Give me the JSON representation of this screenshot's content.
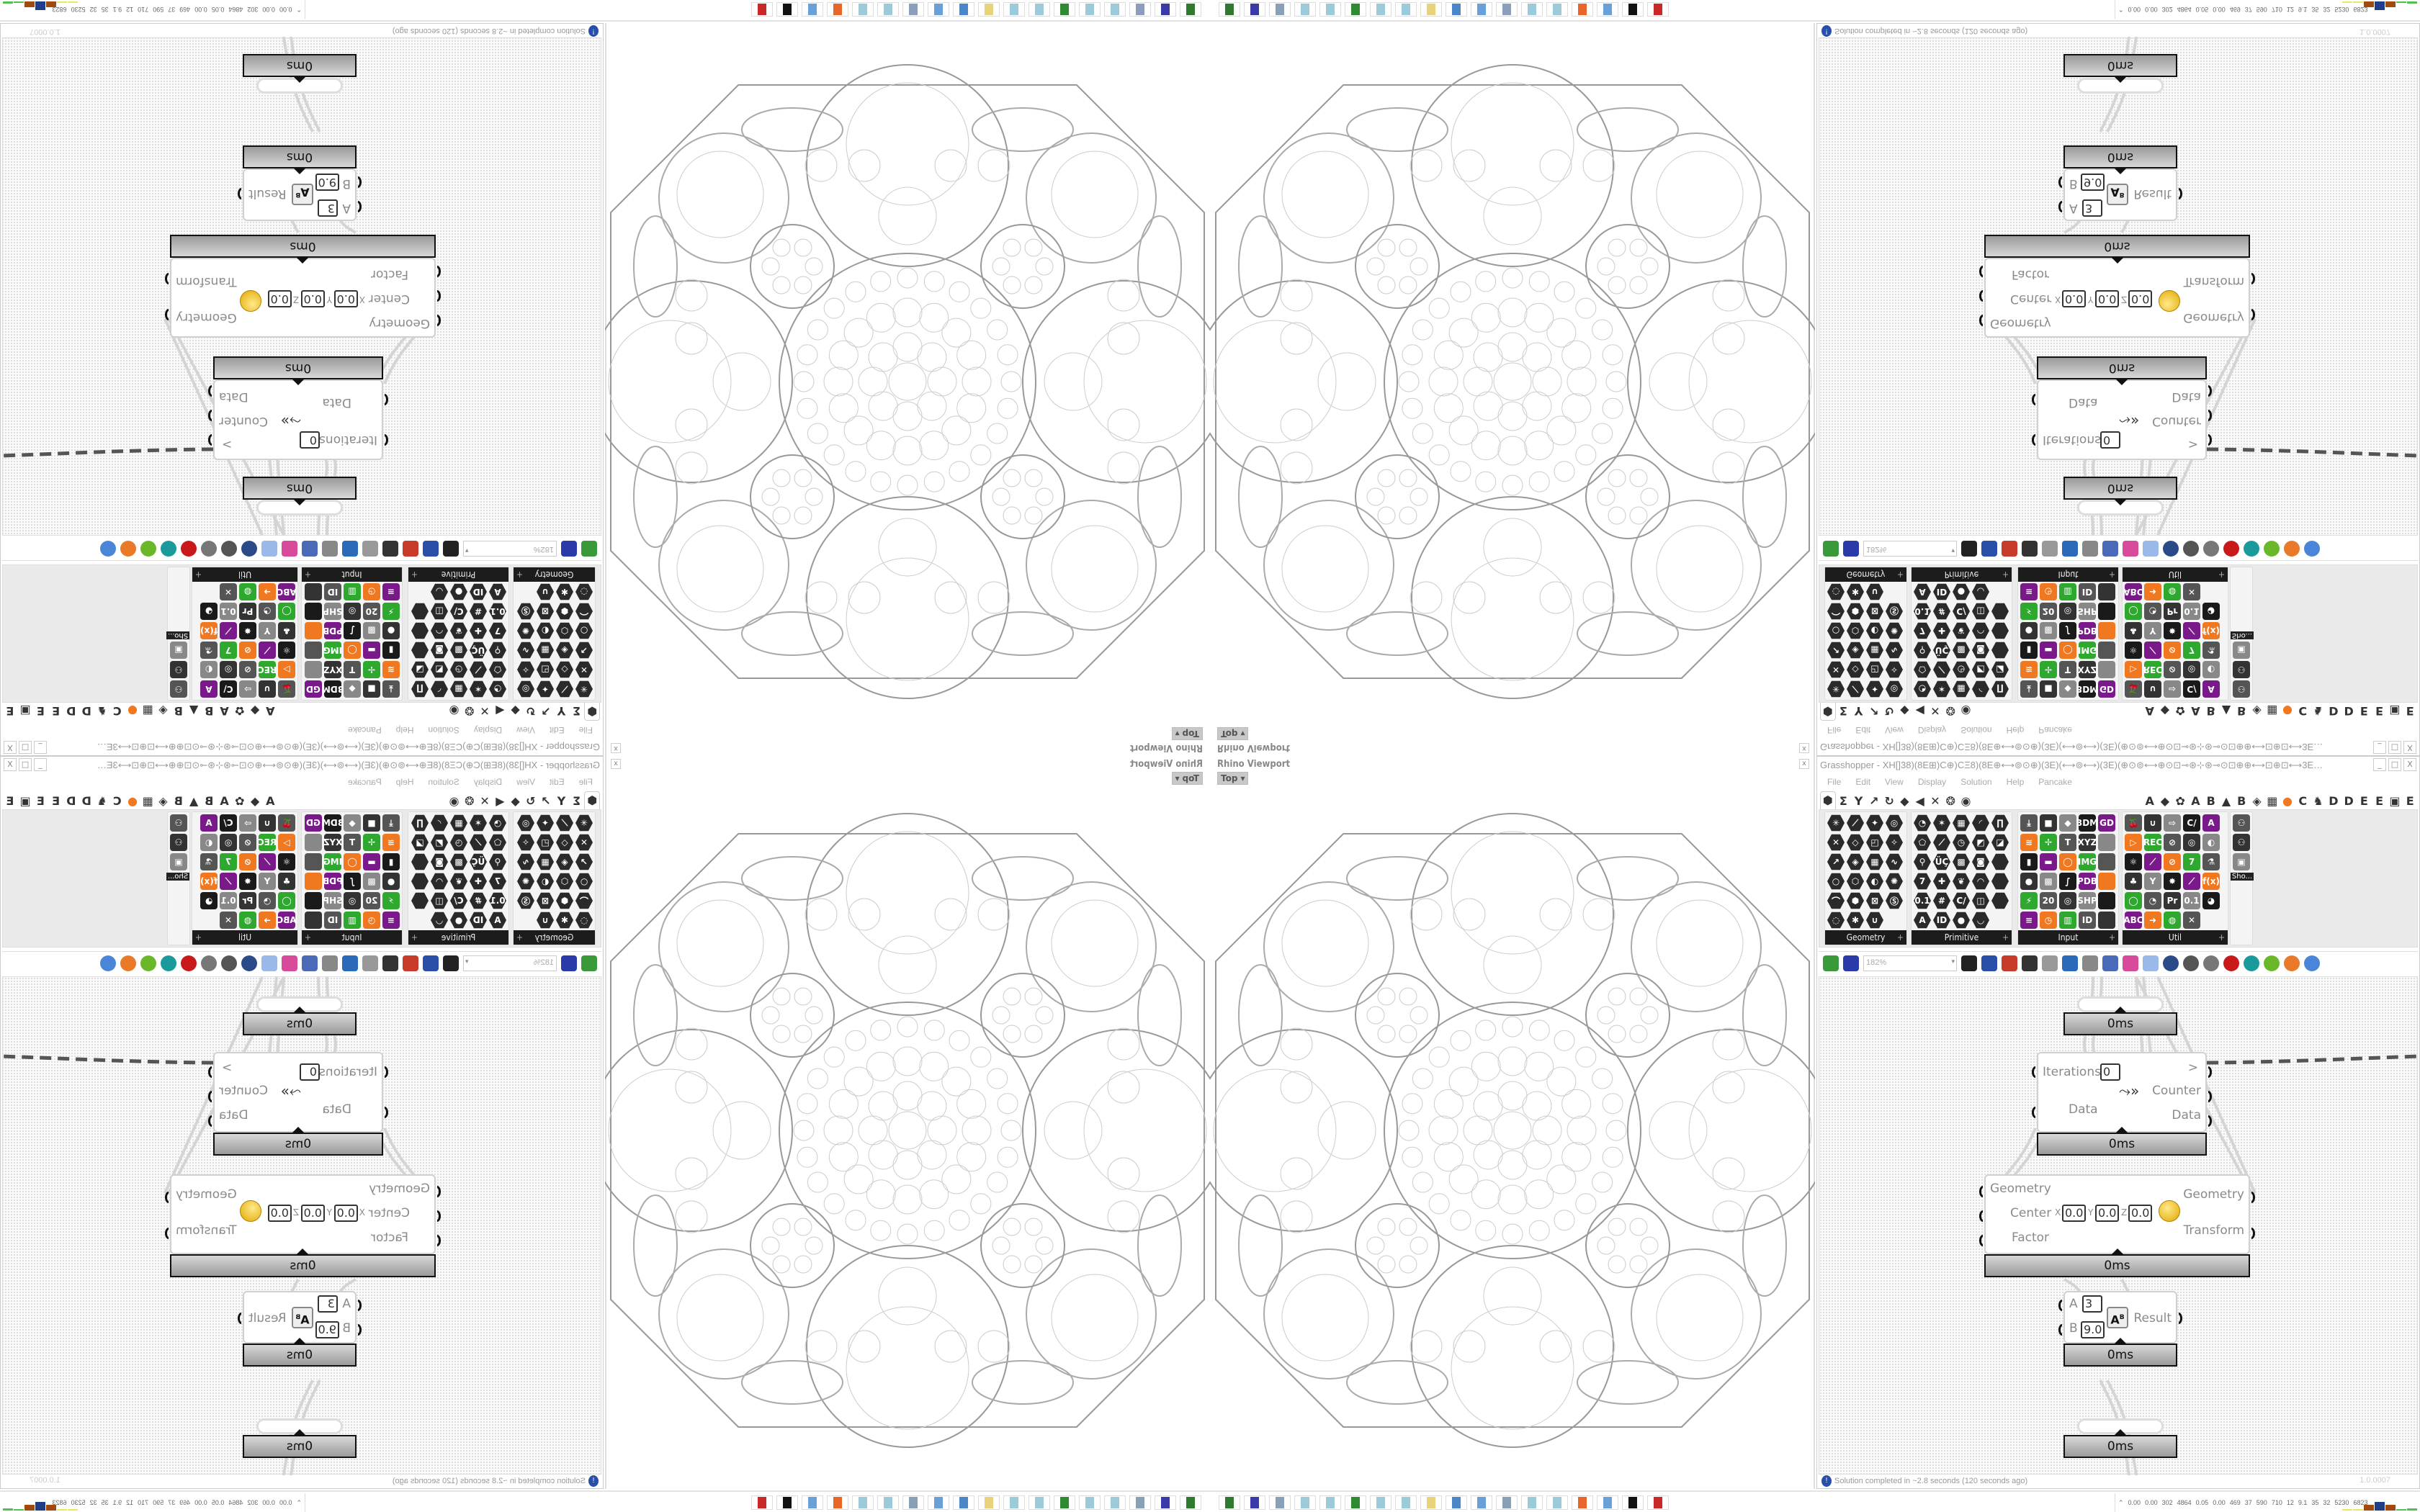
{
  "viewport": {
    "title": "Rhino Viewport",
    "view_button": "Top",
    "close_label": "x"
  },
  "grasshopper": {
    "title": "Grasshopper - XH[]38)(8E⊞)C⊕)CΞ8)(8E⊕⟷⊚⊙⊕)(3E)(⟷⊚⟷)(3E)(⊕⊙⊚⟷⊕⊙⊡⊸⊛⊹⊛⊸⊙⊡⊕⊕⟷⊡⊕⊡⟷3E][3E⟷⊡⊕⊡⟷⊕⊙⊡⊸⊛⊹⊛⊸⊙⊡⊕⊕⟷⊚⊙⊕)(3E)(⟷⊙...",
    "window_buttons": [
      "_",
      "□",
      "X"
    ],
    "menu": [
      "File",
      "Edit",
      "View",
      "Display",
      "Solution",
      "Help",
      "Pancake"
    ],
    "tabs": [
      "⬢",
      "Σ",
      "Y",
      "↗",
      "↻",
      "◆",
      "◀",
      "✕",
      "❂",
      "◉",
      "",
      "",
      "",
      "",
      "",
      "",
      "",
      "",
      "",
      "",
      "",
      "A",
      "◆",
      "✿",
      "A",
      "B",
      "▲",
      "B",
      "◈",
      "▦",
      "●",
      "C",
      "♞",
      "D",
      "D",
      "E",
      "E",
      "▣",
      "E"
    ],
    "palette": [
      {
        "label": "Geometry",
        "cols": 4,
        "icons": [
          "✳",
          "⟋",
          "✦",
          "◎",
          "✕",
          "◇",
          "◰",
          "✧",
          "↗",
          "◈",
          "▦",
          "∿",
          "○",
          "⬡",
          "◐",
          "✺",
          "⌒",
          "⬢",
          "⊠",
          "Ⓢ",
          "◌",
          "✱",
          "∪"
        ]
      },
      {
        "label": "Primitive",
        "cols": 5,
        "icons": [
          "◔",
          "✶",
          "▦",
          "◜",
          "∏",
          "⬠",
          "⟋",
          "◷",
          "◩",
          "◪",
          "⚲",
          "ÜÇ",
          "▩",
          "◙",
          "",
          "7",
          "✚",
          "❦",
          "◠",
          "",
          "0.1",
          "#",
          "C/",
          "◫",
          "",
          "A",
          "ID",
          "●",
          "◡"
        ]
      },
      {
        "label": "Input",
        "cols": 5,
        "icons": [
          "⤓",
          "■",
          "◆",
          "3DM",
          "GD",
          "≋",
          "✢",
          "T",
          "XYZ",
          "",
          "▮",
          "▬",
          "◯",
          "IMG",
          "",
          "●",
          "▩",
          "∫",
          "PDB",
          "",
          "⚡",
          "20",
          "◎",
          "SHP",
          "",
          "≡",
          "◷",
          "▥",
          "ID",
          ""
        ]
      },
      {
        "label": "Util",
        "cols": 5,
        "icons": [
          "🍒",
          "∪",
          "⇨",
          "C/",
          "A",
          "▷",
          "REC",
          "⊘",
          "◎",
          "◐",
          "⚛",
          "⟋",
          "⊘",
          "7",
          "⚗",
          "♣",
          "Y",
          "✸",
          "⟋",
          "f(x)",
          "◯",
          "◔",
          "Pr",
          "0.1",
          "◕",
          "ABC",
          "➜",
          "◍",
          "✕"
        ]
      },
      {
        "label": "Sho...",
        "cols": 1,
        "icons": [
          "⚇",
          "⚇",
          "▣"
        ]
      }
    ],
    "icon_colors": {
      "hex": "#2a2a2a",
      "input": "#555555",
      "util": "#444444",
      "accent_orange": "#f07820",
      "accent_purple": "#7a1a8a",
      "accent_green": "#2ea82e"
    },
    "toolbar": {
      "zoom": "182%",
      "icons": [
        "new-file-icon",
        "save-icon",
        "zoom-field",
        "zoom-extents-icon",
        "preview-eye-icon",
        "sketch-icon",
        "bake-icon",
        "at-icon",
        "gha-icon",
        "image-icon",
        "search-icon",
        "package-icon",
        "bulb-icon",
        "wires-icon",
        "preview-shaded-icon",
        "preview-wire-icon",
        "preview-red-icon",
        "teal-icon",
        "green-icon",
        "orange-icon",
        "sphere-icon"
      ]
    },
    "nodes": {
      "top_time": "0ms",
      "counter": {
        "iterations_label": "Iterations",
        "iterations_value": "0",
        "reset_output": ">",
        "counter_label": "Counter",
        "data_in": "Data",
        "data_out": "Data",
        "time": "0ms"
      },
      "scale": {
        "geometry_in": "Geometry",
        "center_label": "Center",
        "x_label": "X",
        "x_value": "0.0",
        "y_label": "Y",
        "y_value": "0.0",
        "z_label": "Z",
        "z_value": "0.0",
        "factor_label": "Factor",
        "geometry_out": "Geometry",
        "transform_out": "Transform",
        "time": "0ms"
      },
      "power": {
        "a_label": "A",
        "a_value": "3",
        "b_label": "B",
        "b_value": "9.0",
        "result_label": "Result",
        "time": "0ms"
      },
      "bottom_time": "0ms"
    },
    "status": {
      "message": "Solution completed in ~2.8 seconds (120 seconds ago)",
      "version": "1.0.0007"
    }
  },
  "taskbar": {
    "icons": [
      {
        "name": "app-green-icon",
        "color": "#2f7a2f"
      },
      {
        "name": "floppy-64-icon",
        "color": "#3a3aa8"
      },
      {
        "name": "script-icon",
        "color": "#8aa0b8"
      },
      {
        "name": "notepad-icon",
        "color": "#9ccad8"
      },
      {
        "name": "notepad-icon",
        "color": "#9ccad8"
      },
      {
        "name": "monitor-icon",
        "color": "#2e8a2e"
      },
      {
        "name": "notepad-icon",
        "color": "#9ccad8"
      },
      {
        "name": "notepad-icon",
        "color": "#9ccad8"
      },
      {
        "name": "folder-icon",
        "color": "#e8d27a"
      },
      {
        "name": "settings-icon",
        "color": "#4a86c8"
      },
      {
        "name": "calculator-icon",
        "color": "#6aa0d8"
      },
      {
        "name": "script-icon",
        "color": "#8aa0b8"
      },
      {
        "name": "notepad-icon",
        "color": "#9ccad8"
      },
      {
        "name": "notepad-icon",
        "color": "#9ccad8"
      },
      {
        "name": "firefox-icon",
        "color": "#e8662a"
      },
      {
        "name": "calculator-icon",
        "color": "#6aa0d8"
      },
      {
        "name": "inkscape-icon",
        "color": "#111111"
      },
      {
        "name": "red-app-icon",
        "color": "#c82828"
      }
    ],
    "perf_values": [
      "0.00",
      "0.00",
      "302",
      "4864",
      "0.05",
      "0.00",
      "469",
      "37",
      "590",
      "710",
      "12",
      "9.1",
      "35",
      "32",
      "5230",
      "6823"
    ],
    "perf_bars": [
      {
        "color": "#e8e860",
        "level": 0.1
      },
      {
        "color": "#e8e860",
        "level": 0.1
      },
      {
        "color": "#a04a10",
        "level": 0.5
      },
      {
        "color": "#1e3e8a",
        "level": 0.75
      },
      {
        "color": "#a04a10",
        "level": 0.5
      },
      {
        "color": "#50c050",
        "level": 0.1
      },
      {
        "color": "#50c050",
        "level": 0.2
      }
    ]
  }
}
